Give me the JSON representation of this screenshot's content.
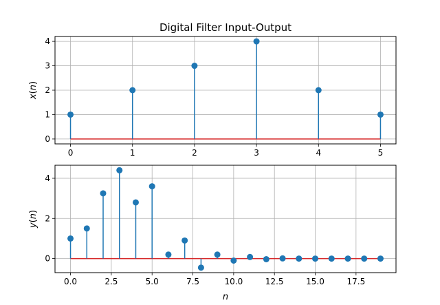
{
  "chart_data": [
    {
      "type": "stem",
      "title": "Digital Filter Input-Output",
      "xlabel": "",
      "ylabel": "x(n)",
      "ylabel_parts": {
        "sym": "x",
        "paren_open": "(",
        "arg": "n",
        "paren_close": ")"
      },
      "grid": true,
      "x": [
        0,
        1,
        2,
        3,
        4,
        5
      ],
      "values": [
        1,
        2,
        3,
        4,
        2,
        1
      ],
      "xlim": [
        -0.25,
        5.25
      ],
      "ylim": [
        -0.2,
        4.2
      ],
      "xticks": [
        0,
        1,
        2,
        3,
        4,
        5
      ],
      "xtick_labels": [
        "0",
        "1",
        "2",
        "3",
        "4",
        "5"
      ],
      "yticks": [
        0,
        1,
        2,
        3,
        4
      ],
      "ytick_labels": [
        "0",
        "1",
        "2",
        "3",
        "4"
      ],
      "colors": {
        "stem": "#1f77b4",
        "marker": "#1f77b4",
        "baseline": "#d62728",
        "grid": "#b0b0b0"
      }
    },
    {
      "type": "stem",
      "title": "",
      "xlabel": "n",
      "ylabel": "y(n)",
      "ylabel_parts": {
        "sym": "y",
        "paren_open": "(",
        "arg": "n",
        "paren_close": ")"
      },
      "grid": true,
      "x": [
        0,
        1,
        2,
        3,
        4,
        5,
        6,
        7,
        8,
        9,
        10,
        11,
        12,
        13,
        14,
        15,
        16,
        17,
        18,
        19
      ],
      "values": [
        1.0,
        1.5,
        3.25,
        4.4,
        2.8,
        3.6,
        0.2,
        0.9,
        -0.45,
        0.2,
        -0.1,
        0.08,
        -0.03,
        0.01,
        0.0,
        0.0,
        0.0,
        0.0,
        0.0,
        0.0
      ],
      "xlim": [
        -0.95,
        19.95
      ],
      "ylim": [
        -0.7,
        4.65
      ],
      "xticks": [
        0,
        2.5,
        5,
        7.5,
        10,
        12.5,
        15,
        17.5
      ],
      "xtick_labels": [
        "0.0",
        "2.5",
        "5.0",
        "7.5",
        "10.0",
        "12.5",
        "15.0",
        "17.5"
      ],
      "yticks": [
        0,
        2,
        4
      ],
      "ytick_labels": [
        "0",
        "2",
        "4"
      ],
      "colors": {
        "stem": "#1f77b4",
        "marker": "#1f77b4",
        "baseline": "#d62728",
        "grid": "#b0b0b0"
      }
    }
  ]
}
